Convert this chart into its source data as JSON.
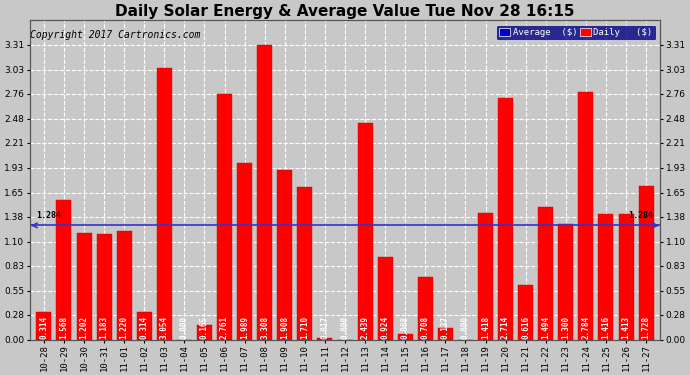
{
  "title": "Daily Solar Energy & Average Value Tue Nov 28 16:15",
  "copyright": "Copyright 2017 Cartronics.com",
  "categories": [
    "10-28",
    "10-29",
    "10-30",
    "10-31",
    "11-01",
    "11-02",
    "11-03",
    "11-04",
    "11-05",
    "11-06",
    "11-07",
    "11-08",
    "11-09",
    "11-10",
    "11-11",
    "11-12",
    "11-13",
    "11-14",
    "11-15",
    "11-16",
    "11-17",
    "11-18",
    "11-19",
    "11-20",
    "11-21",
    "11-22",
    "11-23",
    "11-24",
    "11-25",
    "11-26",
    "11-27"
  ],
  "values": [
    0.314,
    1.568,
    1.202,
    1.183,
    1.22,
    0.314,
    3.054,
    0.0,
    0.165,
    2.761,
    1.989,
    3.308,
    1.908,
    1.71,
    0.017,
    0.0,
    2.439,
    0.924,
    0.068,
    0.708,
    0.137,
    0.0,
    1.418,
    2.714,
    0.616,
    1.494,
    1.3,
    2.784,
    1.416,
    1.413,
    1.728
  ],
  "average_value": 1.284,
  "bar_color": "#ff0000",
  "average_line_color": "#3333cc",
  "ylim": [
    0.0,
    3.586
  ],
  "yticks": [
    0.0,
    0.28,
    0.55,
    0.83,
    1.1,
    1.38,
    1.65,
    1.93,
    2.21,
    2.48,
    2.76,
    3.03,
    3.31
  ],
  "background_color": "#c8c8c8",
  "plot_bg_color": "#c8c8c8",
  "grid_color": "#ffffff",
  "title_fontsize": 11,
  "copyright_fontsize": 7,
  "tick_fontsize": 6.5,
  "bar_label_fontsize": 5.5,
  "avg_label_fontsize": 6,
  "legend_avg_color": "#0000cc",
  "legend_daily_color": "#ff0000",
  "legend_text_color": "#ffffff",
  "legend_bg_color": "#000080"
}
